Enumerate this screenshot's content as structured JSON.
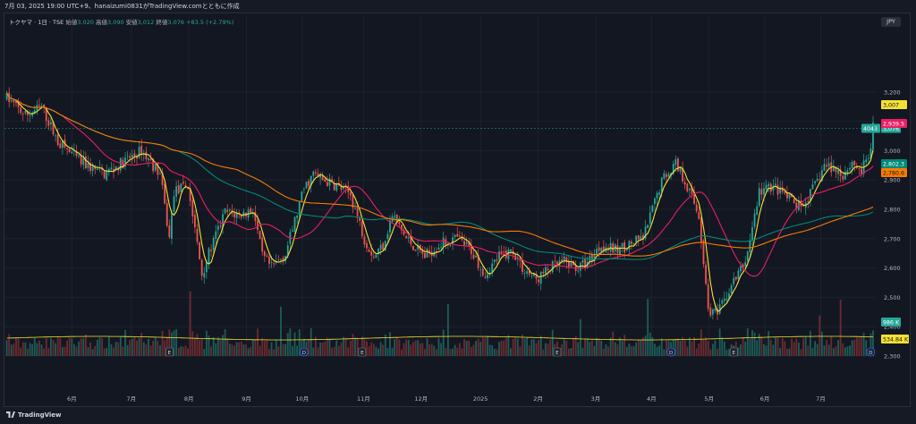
{
  "header": {
    "title": "7月 03, 2025 19:00 UTC+9、hanaizumi0831がTradingView.comとともに作成"
  },
  "symbol": {
    "name": "トクヤマ · 1日 · TSE",
    "open_label": "始値",
    "open": "3,020",
    "high_label": "高値",
    "high": "3,090",
    "low_label": "安値",
    "low": "3,012",
    "close_label": "終値",
    "close": "3,076",
    "change": "+83.5 (+2.79%)"
  },
  "currency": "JPY",
  "branding": {
    "logo_text": "TradingView"
  },
  "colors": {
    "bg": "#131722",
    "up": "#26a69a",
    "down": "#ef5350",
    "ma_fast": "#f5e133",
    "ma_mid": "#e91e63",
    "ma_slow": "#00897b",
    "ma_long": "#f57c00"
  },
  "chart_data": {
    "type": "candlestick",
    "title": "トクヤマ · 1日 · TSE",
    "ylim": [
      2100,
      3350
    ],
    "y_ticks": [
      "3,200",
      "3,100",
      "3,000",
      "2,900",
      "2,800",
      "2,700",
      "2,600",
      "2,500",
      "2,400",
      "2,300"
    ],
    "y_tick_values": [
      3200,
      3100,
      3000,
      2900,
      2800,
      2700,
      2600,
      2500,
      2400,
      2300
    ],
    "x_ticks": [
      "6月",
      "7月",
      "8月",
      "9月",
      "10月",
      "11月",
      "12月",
      "2025",
      "2月",
      "3月",
      "4月",
      "5月",
      "6月",
      "7月"
    ],
    "price_path": [
      [
        0,
        3180
      ],
      [
        8,
        3120
      ],
      [
        15,
        3150
      ],
      [
        22,
        3030
      ],
      [
        32,
        2960
      ],
      [
        42,
        2920
      ],
      [
        50,
        2960
      ],
      [
        58,
        3000
      ],
      [
        66,
        2920
      ],
      [
        70,
        2700
      ],
      [
        72,
        2860
      ],
      [
        78,
        2880
      ],
      [
        84,
        2580
      ],
      [
        88,
        2670
      ],
      [
        94,
        2790
      ],
      [
        100,
        2780
      ],
      [
        106,
        2800
      ],
      [
        110,
        2640
      ],
      [
        114,
        2600
      ],
      [
        120,
        2650
      ],
      [
        128,
        2870
      ],
      [
        132,
        2920
      ],
      [
        136,
        2900
      ],
      [
        142,
        2880
      ],
      [
        148,
        2850
      ],
      [
        154,
        2700
      ],
      [
        158,
        2640
      ],
      [
        162,
        2680
      ],
      [
        166,
        2780
      ],
      [
        172,
        2700
      ],
      [
        180,
        2640
      ],
      [
        186,
        2680
      ],
      [
        194,
        2700
      ],
      [
        200,
        2660
      ],
      [
        206,
        2580
      ],
      [
        212,
        2640
      ],
      [
        218,
        2660
      ],
      [
        222,
        2600
      ],
      [
        228,
        2560
      ],
      [
        234,
        2600
      ],
      [
        240,
        2620
      ],
      [
        246,
        2600
      ],
      [
        250,
        2620
      ],
      [
        256,
        2680
      ],
      [
        262,
        2660
      ],
      [
        268,
        2680
      ],
      [
        274,
        2700
      ],
      [
        282,
        2900
      ],
      [
        288,
        2960
      ],
      [
        293,
        2880
      ],
      [
        298,
        2780
      ],
      [
        302,
        2460
      ],
      [
        306,
        2440
      ],
      [
        312,
        2540
      ],
      [
        318,
        2620
      ],
      [
        324,
        2860
      ],
      [
        330,
        2880
      ],
      [
        336,
        2840
      ],
      [
        342,
        2800
      ],
      [
        348,
        2880
      ],
      [
        352,
        2950
      ],
      [
        356,
        2940
      ],
      [
        360,
        2920
      ],
      [
        364,
        2960
      ],
      [
        368,
        2930
      ],
      [
        372,
        3000
      ],
      [
        373,
        3076
      ]
    ],
    "indicators": [
      {
        "name": "MA fast",
        "value": "3,007",
        "color": "#f5e133"
      },
      {
        "name": "MA mid",
        "value": "2,939.5",
        "color": "#e91e63"
      },
      {
        "name": "MA slow",
        "value": "2,802.3",
        "color": "#00897b"
      },
      {
        "name": "MA long",
        "value": "2,780.6",
        "color": "#f57c00"
      }
    ],
    "last_price": {
      "ticker": "4043",
      "value": "3,076"
    },
    "volume": {
      "label": "986 K",
      "ma_label": "534.84 K"
    },
    "event_markers": [
      {
        "day": 70,
        "text": "E"
      },
      {
        "day": 128,
        "text": "D"
      },
      {
        "day": 153,
        "text": "E"
      },
      {
        "day": 237,
        "text": "E"
      },
      {
        "day": 286,
        "text": "D"
      },
      {
        "day": 313,
        "text": "E"
      },
      {
        "day": 372,
        "text": "D"
      }
    ]
  }
}
